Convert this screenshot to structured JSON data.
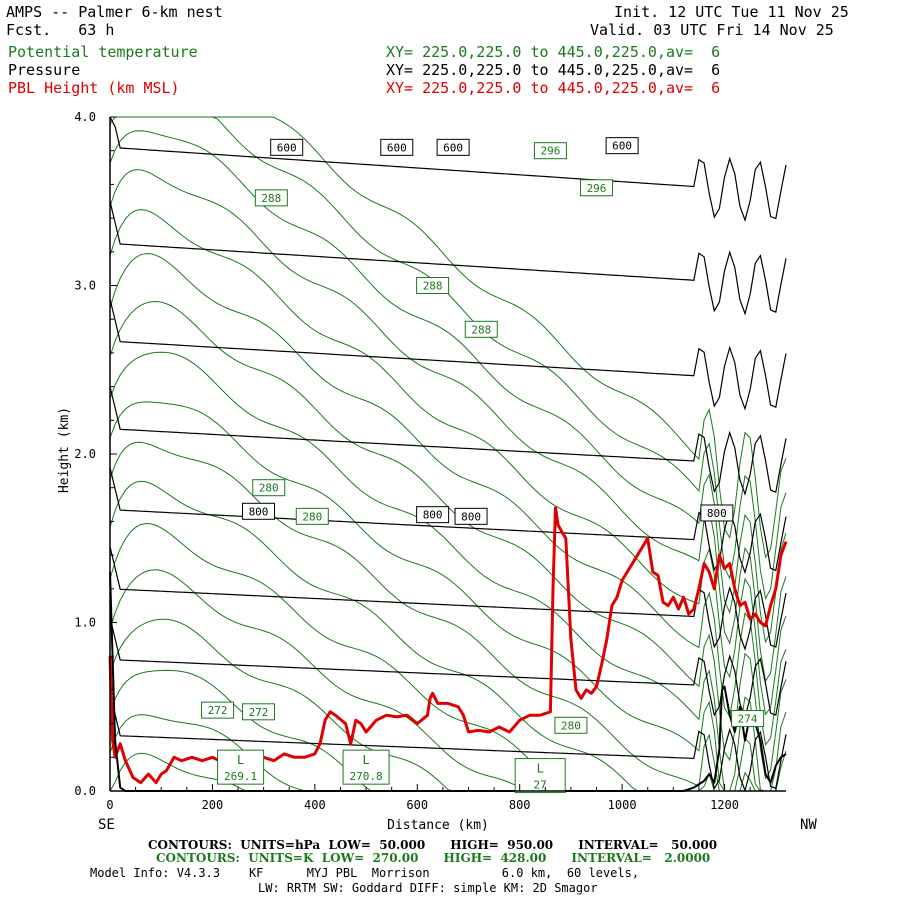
{
  "header": {
    "title": "AMPS -- Palmer 6-km nest",
    "forecast": "Fcst.   63 h",
    "init": "Init. 12 UTC Tue 11 Nov 25",
    "valid": "Valid. 03 UTC Fri 14 Nov 25",
    "fields": [
      {
        "name": "Potential temperature",
        "xy": "XY= 225.0,225.0 to 445.0,225.0,av=  6",
        "color": "#1a7a1a"
      },
      {
        "name": "Pressure",
        "xy": "XY= 225.0,225.0 to 445.0,225.0,av=  6",
        "color": "#000000"
      },
      {
        "name": "PBL Height (km MSL)",
        "xy": "XY= 225.0,225.0 to 445.0,225.0,av=  6",
        "color": "#e00000"
      }
    ]
  },
  "footer": {
    "contours_black": "CONTOURS:  UNITS=hPa  LOW=  50.000      HIGH=  950.00      INTERVAL=   50.000",
    "contours_green": "CONTOURS:  UNITS=K  LOW=  270.00      HIGH=  428.00      INTERVAL=   2.0000",
    "model_info": "Model Info: V4.3.3    KF      MYJ PBL  Morrison          6.0 km,  60 levels,",
    "physics": "LW: RRTM SW: Goddard DIFF: simple KM: 2D Smagor"
  },
  "chart_data": {
    "type": "line",
    "xlabel": "Distance (km)",
    "ylabel": "Height (km)",
    "xlim": [
      0,
      1320
    ],
    "ylim": [
      0,
      4
    ],
    "x_ticks": [
      0,
      200,
      400,
      600,
      800,
      1000,
      1200
    ],
    "y_ticks": [
      0.0,
      1.0,
      2.0,
      3.0,
      4.0
    ],
    "y_tick_labels": [
      "0.0",
      "1.0",
      "2.0",
      "3.0",
      "4.0"
    ],
    "left_end_label": "SE",
    "right_end_label": "NW",
    "grid": false,
    "pressure_contours": {
      "color": "#000000",
      "levels_km": [
        0.33,
        0.78,
        1.2,
        1.67,
        2.15,
        2.67,
        3.25,
        3.82
      ]
    },
    "theta_contours": {
      "color": "#1a7a1a",
      "count": 18
    },
    "contour_labels": [
      {
        "text": "600",
        "x": 345,
        "y": 3.82,
        "color": "#000000"
      },
      {
        "text": "600",
        "x": 560,
        "y": 3.82,
        "color": "#000000"
      },
      {
        "text": "600",
        "x": 670,
        "y": 3.82,
        "color": "#000000"
      },
      {
        "text": "600",
        "x": 1000,
        "y": 3.83,
        "color": "#000000"
      },
      {
        "text": "800",
        "x": 290,
        "y": 1.66,
        "color": "#000000"
      },
      {
        "text": "800",
        "x": 630,
        "y": 1.64,
        "color": "#000000"
      },
      {
        "text": "800",
        "x": 705,
        "y": 1.63,
        "color": "#000000"
      },
      {
        "text": "800",
        "x": 1185,
        "y": 1.65,
        "color": "#000000"
      },
      {
        "text": "296",
        "x": 860,
        "y": 3.8,
        "color": "#1a7a1a"
      },
      {
        "text": "296",
        "x": 950,
        "y": 3.58,
        "color": "#1a7a1a"
      },
      {
        "text": "288",
        "x": 315,
        "y": 3.52,
        "color": "#1a7a1a"
      },
      {
        "text": "288",
        "x": 630,
        "y": 3.0,
        "color": "#1a7a1a"
      },
      {
        "text": "288",
        "x": 725,
        "y": 2.74,
        "color": "#1a7a1a"
      },
      {
        "text": "280",
        "x": 310,
        "y": 1.8,
        "color": "#1a7a1a"
      },
      {
        "text": "280",
        "x": 395,
        "y": 1.63,
        "color": "#1a7a1a"
      },
      {
        "text": "280",
        "x": 900,
        "y": 0.39,
        "color": "#1a7a1a"
      },
      {
        "text": "272",
        "x": 210,
        "y": 0.48,
        "color": "#1a7a1a"
      },
      {
        "text": "272",
        "x": 290,
        "y": 0.47,
        "color": "#1a7a1a"
      },
      {
        "text": "274",
        "x": 1245,
        "y": 0.43,
        "color": "#1a7a1a"
      }
    ],
    "low_labels": [
      {
        "text": "L",
        "value": "269.1",
        "x": 255,
        "y": 0.1
      },
      {
        "text": "L",
        "value": "270.8",
        "x": 500,
        "y": 0.1
      },
      {
        "text": "L",
        "value": "27",
        "x": 840,
        "y": 0.05
      }
    ],
    "series": [
      {
        "name": "PBL Height (km MSL)",
        "color": "#e00000",
        "x": [
          0,
          5,
          10,
          20,
          30,
          45,
          60,
          75,
          90,
          100,
          110,
          125,
          140,
          160,
          180,
          200,
          220,
          240,
          260,
          280,
          300,
          320,
          340,
          360,
          380,
          400,
          410,
          420,
          430,
          440,
          460,
          470,
          480,
          490,
          500,
          520,
          540,
          560,
          580,
          600,
          620,
          625,
          630,
          640,
          660,
          680,
          690,
          700,
          720,
          740,
          760,
          780,
          800,
          820,
          840,
          860,
          865,
          870,
          875,
          880,
          890,
          900,
          910,
          920,
          930,
          940,
          950,
          960,
          970,
          980,
          990,
          1000,
          1010,
          1020,
          1030,
          1040,
          1050,
          1060,
          1070,
          1080,
          1090,
          1100,
          1110,
          1120,
          1130,
          1140,
          1150,
          1160,
          1170,
          1180,
          1190,
          1200,
          1210,
          1220,
          1230,
          1240,
          1250,
          1260,
          1270,
          1280,
          1290,
          1300,
          1310,
          1320
        ],
        "y": [
          0.8,
          0.3,
          0.2,
          0.28,
          0.18,
          0.08,
          0.05,
          0.1,
          0.05,
          0.1,
          0.12,
          0.2,
          0.18,
          0.2,
          0.18,
          0.2,
          0.17,
          0.2,
          0.18,
          0.2,
          0.2,
          0.18,
          0.22,
          0.2,
          0.2,
          0.22,
          0.28,
          0.42,
          0.47,
          0.45,
          0.4,
          0.28,
          0.42,
          0.4,
          0.35,
          0.42,
          0.45,
          0.44,
          0.45,
          0.4,
          0.45,
          0.55,
          0.58,
          0.52,
          0.52,
          0.5,
          0.45,
          0.35,
          0.36,
          0.35,
          0.38,
          0.35,
          0.42,
          0.45,
          0.45,
          0.47,
          1.2,
          1.68,
          1.58,
          1.55,
          1.5,
          0.9,
          0.6,
          0.55,
          0.6,
          0.58,
          0.62,
          0.75,
          0.9,
          1.1,
          1.15,
          1.25,
          1.3,
          1.35,
          1.4,
          1.45,
          1.5,
          1.3,
          1.28,
          1.12,
          1.1,
          1.15,
          1.08,
          1.15,
          1.05,
          1.08,
          1.2,
          1.35,
          1.3,
          1.2,
          1.4,
          1.32,
          1.35,
          1.2,
          1.1,
          1.12,
          1.02,
          1.05,
          1.0,
          0.98,
          1.1,
          1.2,
          1.4,
          1.48
        ]
      },
      {
        "name": "",
        "color": "#000000",
        "x": [
          0,
          10,
          20,
          30,
          40,
          1120,
          1140,
          1160,
          1170,
          1180,
          1190,
          1195,
          1200,
          1210,
          1220,
          1230,
          1240,
          1250,
          1260,
          1270,
          1280,
          1290,
          1300,
          1310,
          1320
        ],
        "y": [
          1.3,
          0.3,
          0.02,
          0.0,
          0.0,
          0.0,
          0.02,
          0.06,
          0.1,
          0.05,
          0.25,
          0.6,
          0.62,
          0.45,
          0.35,
          0.5,
          0.3,
          0.45,
          0.4,
          0.3,
          0.1,
          0.05,
          0.15,
          0.2,
          0.22
        ]
      }
    ]
  }
}
